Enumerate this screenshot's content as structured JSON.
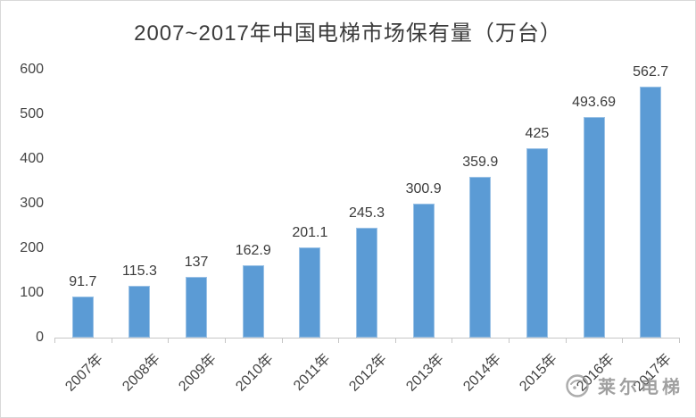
{
  "chart_data": {
    "type": "bar",
    "title": "2007~2017年中国电梯市场保有量（万台）",
    "categories": [
      "2007年",
      "2008年",
      "2009年",
      "2010年",
      "2011年",
      "2012年",
      "2013年",
      "2014年",
      "2015年",
      "2016年",
      "2017年"
    ],
    "values": [
      91.7,
      115.3,
      137,
      162.9,
      201.1,
      245.3,
      300.9,
      359.9,
      425,
      493.69,
      562.7
    ],
    "value_labels": [
      "91.7",
      "115.3",
      "137",
      "162.9",
      "201.1",
      "245.3",
      "300.9",
      "359.9",
      "425",
      "493.69",
      "562.7"
    ],
    "xlabel": "",
    "ylabel": "",
    "ylim": [
      0,
      600
    ],
    "yticks": [
      0,
      100,
      200,
      300,
      400,
      500,
      600
    ],
    "yticklabels": [
      "0",
      "100",
      "200",
      "300",
      "400",
      "500",
      "600"
    ],
    "grid": false,
    "legend": "none",
    "bar_color": "#5b9bd5",
    "bar_border_color": "#9bc2e6",
    "axis_line_color": "#c6c6c6",
    "label_color": "#3b3b3b"
  },
  "watermark": {
    "text": "莱尔电梯"
  }
}
